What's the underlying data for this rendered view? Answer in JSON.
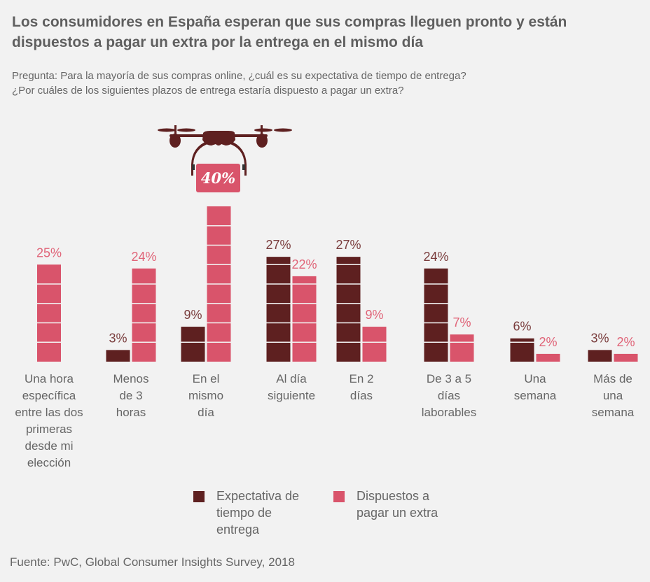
{
  "header": {
    "title": "Los consumidores en España esperan que sus compras lleguen pronto y están dispuestos a pagar un extra por la entrega en el mismo día",
    "subtitle_line1": "Pregunta: Para la mayoría de sus compras online, ¿cuál es su expectativa de tiempo de entrega?",
    "subtitle_line2": "¿Por cuáles de los siguientes plazos de entrega estaría dispuesto a pagar un extra?"
  },
  "colors": {
    "expectation": "#5e2020",
    "willing": "#d9546b",
    "label_expectation": "#7a3d3d",
    "label_willing": "#e06478"
  },
  "chart_data": {
    "type": "bar",
    "title": "Los consumidores en España esperan que sus compras lleguen pronto y están dispuestos a pagar un extra por la entrega en el mismo día",
    "xlabel": "",
    "ylabel": "",
    "ylim": [
      0,
      40
    ],
    "grid": false,
    "legend_position": "bottom",
    "categories": [
      "Una hora específica entre las dos primeras desde mi elección",
      "Menos de 3 horas",
      "En el mismo día",
      "Al día siguiente",
      "En 2 días",
      "De 3 a 5 días laborables",
      "Una semana",
      "Más de una semana"
    ],
    "series": [
      {
        "name": "Expectativa de tiempo de entrega",
        "values": [
          null,
          3,
          9,
          27,
          27,
          24,
          6,
          3
        ]
      },
      {
        "name": "Dispuestos a pagar un extra",
        "values": [
          25,
          24,
          40,
          22,
          9,
          7,
          2,
          2
        ]
      }
    ],
    "data_labels": {
      "expectation": [
        "",
        "3%",
        "9%",
        "27%",
        "27%",
        "24%",
        "6%",
        "3%"
      ],
      "willing": [
        "25%",
        "24%",
        "40%",
        "22%",
        "9%",
        "7%",
        "2%",
        "2%"
      ]
    },
    "annotation": {
      "icon": "drone-icon",
      "label": "40%",
      "category_index": 2
    }
  },
  "categories_display": [
    [
      "Una hora",
      "específica",
      "entre las dos",
      "primeras",
      "desde mi",
      "elección"
    ],
    [
      "Menos",
      "de 3",
      "horas"
    ],
    [
      "En el",
      "mismo",
      "día"
    ],
    [
      "Al día",
      "siguiente"
    ],
    [
      "En 2",
      "días"
    ],
    [
      "De 3 a 5",
      "días",
      "laborables"
    ],
    [
      "Una",
      "semana"
    ],
    [
      "Más de",
      "una",
      "semana"
    ]
  ],
  "legend": {
    "expectation_label": "Expectativa de tiempo de entrega",
    "willing_label": "Dispuestos a pagar un extra"
  },
  "footer": {
    "source": "Fuente: PwC, Global Consumer Insights Survey, 2018"
  }
}
